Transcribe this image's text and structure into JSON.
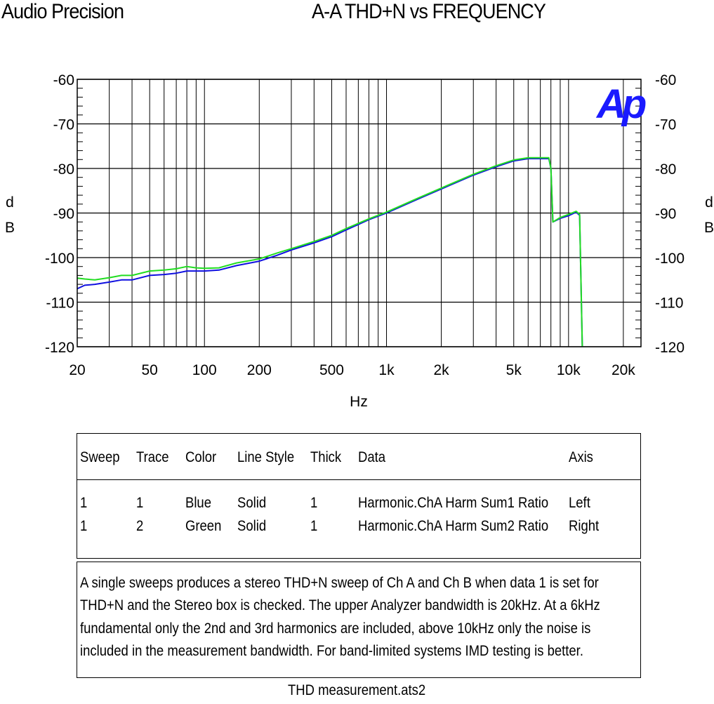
{
  "header": {
    "brand": "Audio Precision",
    "title": "A-A THD+N vs FREQUENCY"
  },
  "logo": {
    "text": "Ap",
    "color": "#1a1aff"
  },
  "chart_data": {
    "type": "line",
    "title": "A-A THD+N vs FREQUENCY",
    "xlabel": "Hz",
    "ylabel_left": "dB",
    "ylabel_right": "dB",
    "xscale": "log",
    "xlim": [
      20,
      25000
    ],
    "ylim": [
      -120,
      -60
    ],
    "grid": true,
    "x_tick_labels": [
      "20",
      "50",
      "100",
      "200",
      "500",
      "1k",
      "2k",
      "5k",
      "10k",
      "20k"
    ],
    "x_tick_values": [
      20,
      50,
      100,
      200,
      500,
      1000,
      2000,
      5000,
      10000,
      20000
    ],
    "y_ticks": [
      -60,
      -70,
      -80,
      -90,
      -100,
      -110,
      -120
    ],
    "series": [
      {
        "name": "Harmonic.ChA Harm Sum1 Ratio",
        "color": "#1010e0",
        "x": [
          20,
          22,
          25,
          30,
          35,
          40,
          50,
          60,
          70,
          80,
          90,
          100,
          120,
          150,
          200,
          250,
          300,
          400,
          500,
          600,
          800,
          1000,
          1500,
          2000,
          3000,
          4000,
          5000,
          6000,
          7000,
          7800,
          8000,
          8200,
          9000,
          10000,
          11000,
          11500,
          11900
        ],
        "y": [
          -107,
          -106.2,
          -106,
          -105.5,
          -105,
          -105,
          -104,
          -103.8,
          -103.5,
          -103,
          -103,
          -103,
          -102.8,
          -101.8,
          -100.8,
          -99.5,
          -98.3,
          -96.7,
          -95.3,
          -93.8,
          -91.5,
          -90,
          -86.8,
          -84.6,
          -81.5,
          -79.6,
          -78.3,
          -77.8,
          -77.8,
          -77.8,
          -80,
          -92,
          -91.2,
          -90.6,
          -89.8,
          -90.5,
          -120
        ]
      },
      {
        "name": "Harmonic.ChA Harm Sum2 Ratio",
        "color": "#22dd22",
        "x": [
          20,
          22,
          25,
          30,
          35,
          40,
          50,
          60,
          70,
          80,
          90,
          100,
          120,
          150,
          200,
          250,
          300,
          400,
          500,
          600,
          800,
          1000,
          1500,
          2000,
          3000,
          4000,
          5000,
          6000,
          7000,
          7800,
          8000,
          8200,
          9000,
          10000,
          11000,
          11500,
          11900
        ],
        "y": [
          -104.6,
          -104.8,
          -105,
          -104.5,
          -104,
          -104,
          -103,
          -102.8,
          -102.5,
          -102,
          -102.3,
          -102.4,
          -102.3,
          -101.2,
          -100.3,
          -99,
          -98,
          -96.4,
          -95,
          -93.5,
          -91.3,
          -89.8,
          -86.6,
          -84.4,
          -81.3,
          -79.4,
          -78.1,
          -77.6,
          -77.6,
          -77.6,
          -80,
          -92,
          -91,
          -90.3,
          -89.6,
          -90.3,
          -120
        ]
      }
    ]
  },
  "legend": {
    "headers": [
      "Sweep",
      "Trace",
      "Color",
      "Line Style",
      "Thick",
      "Data",
      "Axis"
    ],
    "rows": [
      [
        "1",
        "1",
        "Blue",
        "Solid",
        "1",
        "Harmonic.ChA Harm Sum1 Ratio",
        "Left"
      ],
      [
        "1",
        "2",
        "Green",
        "Solid",
        "1",
        "Harmonic.ChA Harm Sum2 Ratio",
        "Right"
      ]
    ]
  },
  "notes": [
    "A single sweeps produces a stereo THD+N sweep of Ch A and Ch B when data 1 is set for",
    "THD+N and the Stereo box is checked.  The upper Analyzer bandwidth is 20kHz.  At a 6kHz",
    "fundamental only the 2nd and 3rd harmonics are included, above 10kHz only the noise is",
    "included in the measurement bandwidth.  For band-limited systems IMD testing is better."
  ],
  "footer": "THD measurement.ats2"
}
